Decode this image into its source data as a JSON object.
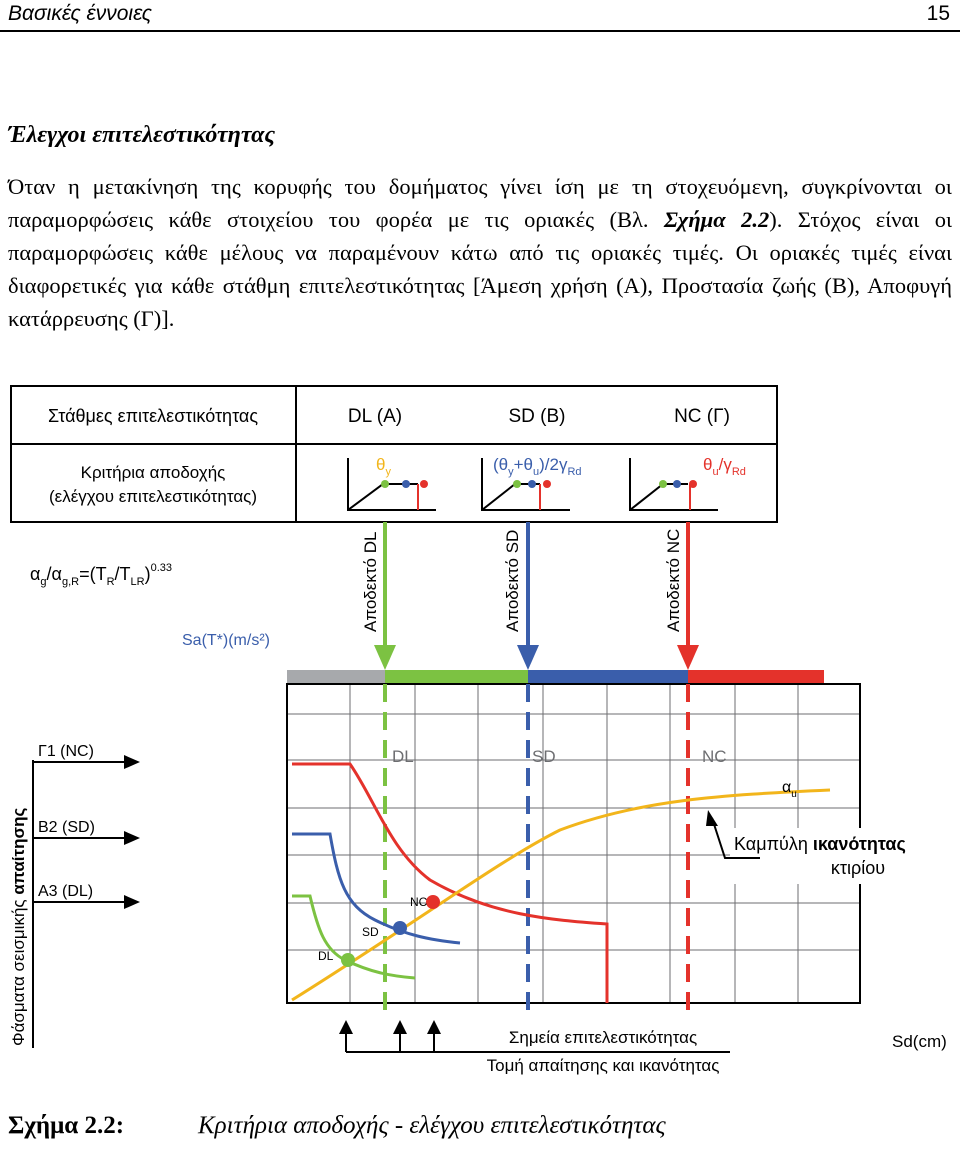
{
  "header": {
    "section": "Βασικές έννοιες",
    "page": "15"
  },
  "heading": "Έλεγχοι επιτελεστικότητας",
  "paragraph": {
    "part1": "Όταν η μετακίνηση της κορυφής του δομήματος γίνει ίση με τη στοχευόμενη, συγκρίνονται οι παραμορφώσεις κάθε στοιχείου του φορέα με τις οριακές (Βλ. ",
    "ref": "Σχήμα 2.2",
    "part2": "). Στόχος είναι οι παραμορφώσεις κάθε μέλους να παραμένουν κάτω από τις οριακές τιμές. Οι οριακές τιμές είναι διαφορετικές για κάθε στάθμη επιτελεστικότητας [Άμεση χρήση (Α), Προστασία ζωής (Β), Αποφυγή κατάρρευσης (Γ)]."
  },
  "figure": {
    "table": {
      "row1_label": "Στάθμες επιτελεστικότητας",
      "levels": [
        "DL (A)",
        "SD (B)",
        "NC (Γ)"
      ],
      "row2_label_1": "Κριτήρια αποδοχής",
      "row2_label_2": "(ελέγχου επιτελεστικότητας)",
      "crit_dl": "θ",
      "crit_dl_sub": "y",
      "crit_sd_pre": "(θ",
      "crit_sd_y": "y",
      "crit_sd_mid": "+θ",
      "crit_sd_u": "u",
      "crit_sd_post": ")/2γ",
      "crit_sd_rd": "Rd",
      "crit_nc_pre": "θ",
      "crit_nc_u": "u",
      "crit_nc_mid": "/γ",
      "crit_nc_rd": "Rd"
    },
    "formula": {
      "a": "α",
      "g": "g",
      "slash": "/α",
      "gR": "g,R",
      "eq": "=(T",
      "R": "R",
      "slash2": "/T",
      "LR": "LR",
      "close": ")",
      "exp": "0.33"
    },
    "sa_label": "Sa(T*)(m/s²)",
    "acceptable": [
      "Αποδεκτό DL",
      "Αποδεκτό SD",
      "Αποδεκτό NC"
    ],
    "zone_labels": [
      "DL",
      "SD",
      "NC"
    ],
    "demand_levels": [
      "Γ1 (NC)",
      "B2 (SD)",
      "A3 (DL)"
    ],
    "demand_axis": "Φάσματα σεισμικής απαίτησης",
    "demand_axis_plain": "Φάσματα σεισμικής ",
    "demand_axis_bold": "απαίτησης",
    "alpha_u": "α",
    "alpha_u_sub": "u",
    "capacity_plain": "Καμπύλη ",
    "capacity_bold": "ικανότητας",
    "capacity_2": "κτιρίου",
    "point_labels": [
      "DL",
      "SD",
      "NC"
    ],
    "perf_points": "Σημεία επιτελεστικότητας",
    "intersection": "Τομή απαίτησης και ικανότητας",
    "sd_label": "Sd(cm)",
    "colors": {
      "dl": "#7cc242",
      "sd": "#3a5eab",
      "nc": "#e4322b",
      "capacity": "#f2b51b",
      "gray": "#a7a9ac"
    }
  },
  "caption": {
    "label": "Σχήμα 2.2:",
    "text": "Κριτήρια αποδοχής - ελέγχου επιτελεστικότητας"
  }
}
